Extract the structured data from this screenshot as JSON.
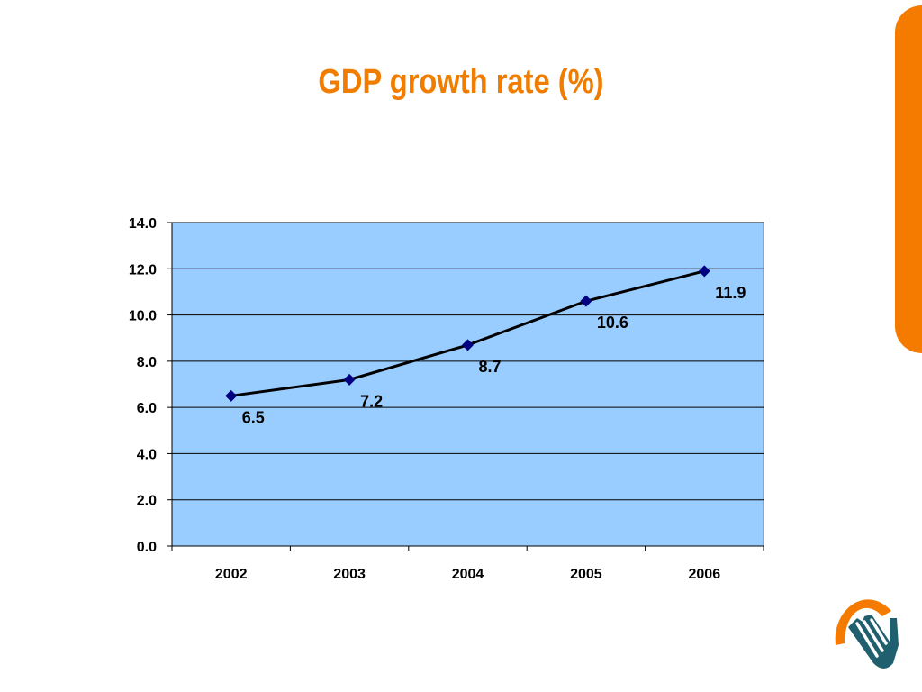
{
  "title": "GDP growth rate (%)",
  "colors": {
    "accent": "#f57b00",
    "title": "#f07c00",
    "plot_background": "#99ccff",
    "line": "#000000",
    "marker": "#000080",
    "logo_teal": "#1f5f6e"
  },
  "icons": {
    "logo": "hand-logo-icon"
  },
  "chart_data": {
    "type": "line",
    "categories": [
      "2002",
      "2003",
      "2004",
      "2005",
      "2006"
    ],
    "series": [
      {
        "values": [
          6.5,
          7.2,
          8.7,
          10.6,
          11.9
        ],
        "marker": "diamond"
      }
    ],
    "data_labels": [
      "6.5",
      "7.2",
      "8.7",
      "10.6",
      "11.9"
    ],
    "ylim": [
      0,
      14
    ],
    "yticks": [
      "0.0",
      "2.0",
      "4.0",
      "6.0",
      "8.0",
      "10.0",
      "12.0",
      "14.0"
    ],
    "grid": true,
    "legend": "none",
    "xlabel": "",
    "ylabel": ""
  }
}
